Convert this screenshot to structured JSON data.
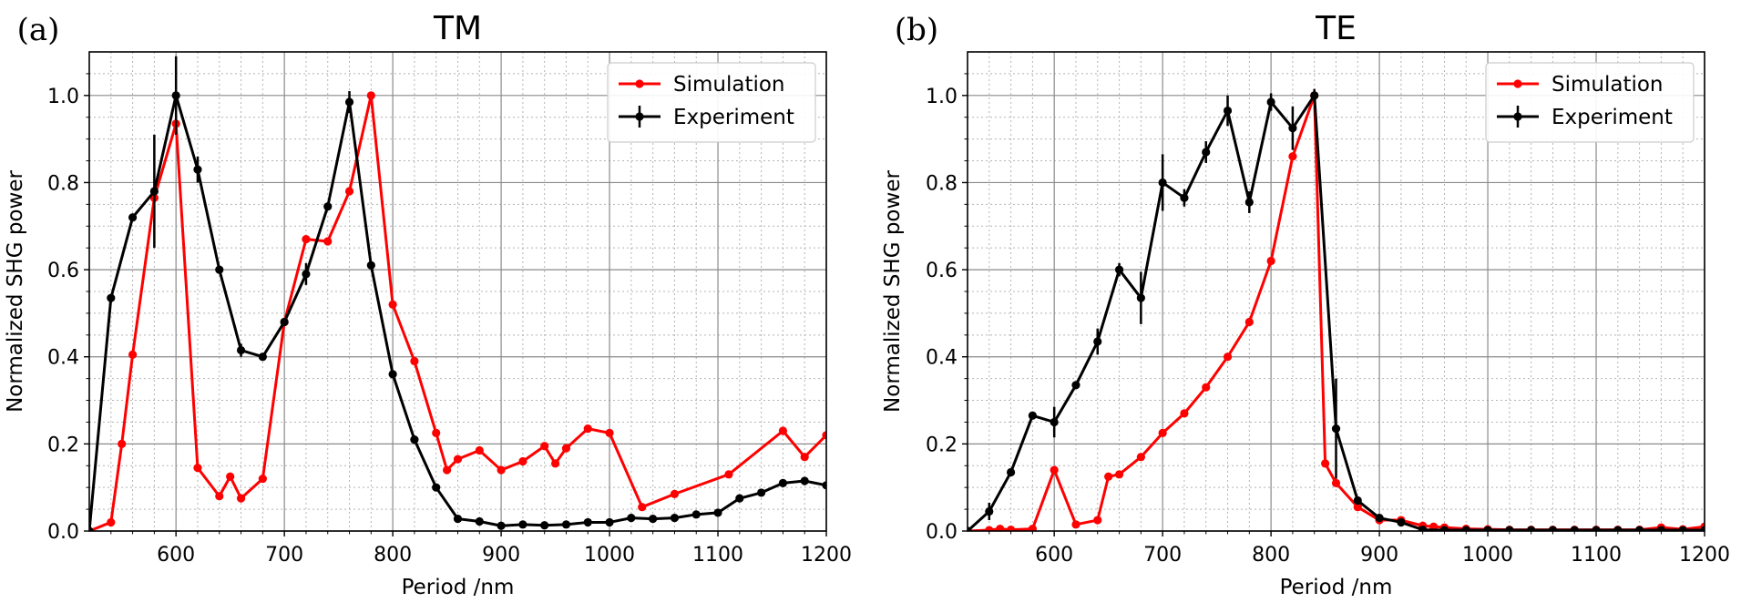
{
  "chart_data": [
    {
      "type": "line",
      "panel_label": "(a)",
      "title": "TM",
      "xlabel": "Period /nm",
      "ylabel": "Normalized SHG power",
      "xlim": [
        520,
        1200
      ],
      "ylim": [
        0,
        1.1
      ],
      "xticks": [
        "600",
        "700",
        "800",
        "900",
        "1000",
        "1100",
        "1200"
      ],
      "yticks": [
        "0.0",
        "0.2",
        "0.4",
        "0.6",
        "0.8",
        "1.0"
      ],
      "grid": true,
      "legend_position": "top-right",
      "series": [
        {
          "name": "Simulation",
          "color": "#ff0000",
          "x": [
            520,
            540,
            550,
            560,
            580,
            600,
            620,
            640,
            650,
            660,
            680,
            700,
            720,
            740,
            760,
            780,
            800,
            820,
            840,
            850,
            860,
            880,
            900,
            920,
            940,
            950,
            960,
            980,
            1000,
            1030,
            1060,
            1110,
            1160,
            1180,
            1200
          ],
          "y": [
            0.0,
            0.02,
            0.2,
            0.405,
            0.765,
            0.935,
            0.145,
            0.08,
            0.125,
            0.075,
            0.12,
            0.48,
            0.67,
            0.665,
            0.78,
            1.0,
            0.52,
            0.39,
            0.225,
            0.14,
            0.165,
            0.185,
            0.14,
            0.16,
            0.195,
            0.155,
            0.19,
            0.235,
            0.225,
            0.055,
            0.085,
            0.13,
            0.23,
            0.17,
            0.22
          ]
        },
        {
          "name": "Experiment",
          "color": "#000000",
          "x": [
            520,
            540,
            560,
            580,
            600,
            620,
            640,
            660,
            680,
            700,
            720,
            740,
            760,
            780,
            800,
            820,
            840,
            860,
            880,
            900,
            920,
            940,
            960,
            980,
            1000,
            1020,
            1040,
            1060,
            1080,
            1100,
            1120,
            1140,
            1160,
            1180,
            1200
          ],
          "y": [
            0.0,
            0.535,
            0.72,
            0.78,
            1.0,
            0.83,
            0.6,
            0.415,
            0.4,
            0.48,
            0.59,
            0.745,
            0.985,
            0.61,
            0.36,
            0.21,
            0.1,
            0.028,
            0.022,
            0.012,
            0.015,
            0.013,
            0.015,
            0.02,
            0.02,
            0.03,
            0.028,
            0.03,
            0.038,
            0.042,
            0.075,
            0.088,
            0.11,
            0.115,
            0.105
          ],
          "err": [
            0,
            0,
            0,
            0.13,
            0.09,
            0.03,
            0,
            0.015,
            0,
            0,
            0.025,
            0,
            0.025,
            0,
            0,
            0,
            0,
            0,
            0,
            0,
            0,
            0,
            0,
            0,
            0,
            0,
            0,
            0,
            0,
            0,
            0,
            0,
            0,
            0,
            0
          ]
        }
      ]
    },
    {
      "type": "line",
      "panel_label": "(b)",
      "title": "TE",
      "xlabel": "Period /nm",
      "ylabel": "Normalized SHG power",
      "xlim": [
        520,
        1200
      ],
      "ylim": [
        0,
        1.1
      ],
      "xticks": [
        "600",
        "700",
        "800",
        "900",
        "1000",
        "1100",
        "1200"
      ],
      "yticks": [
        "0.0",
        "0.2",
        "0.4",
        "0.6",
        "0.8",
        "1.0"
      ],
      "grid": true,
      "legend_position": "top-right",
      "series": [
        {
          "name": "Simulation",
          "color": "#ff0000",
          "x": [
            520,
            540,
            550,
            560,
            580,
            600,
            620,
            640,
            650,
            660,
            680,
            700,
            720,
            740,
            760,
            780,
            800,
            820,
            840,
            850,
            860,
            880,
            900,
            920,
            940,
            950,
            960,
            980,
            1000,
            1020,
            1040,
            1060,
            1080,
            1100,
            1120,
            1140,
            1160,
            1180,
            1200
          ],
          "y": [
            0.0,
            0.002,
            0.005,
            0.003,
            0.005,
            0.14,
            0.015,
            0.025,
            0.125,
            0.13,
            0.17,
            0.225,
            0.27,
            0.33,
            0.4,
            0.48,
            0.62,
            0.86,
            1.0,
            0.155,
            0.11,
            0.055,
            0.025,
            0.025,
            0.012,
            0.01,
            0.008,
            0.005,
            0.004,
            0.003,
            0.003,
            0.003,
            0.003,
            0.003,
            0.003,
            0.003,
            0.008,
            0.004,
            0.01
          ]
        },
        {
          "name": "Experiment",
          "color": "#000000",
          "x": [
            520,
            540,
            560,
            580,
            600,
            620,
            640,
            660,
            680,
            700,
            720,
            740,
            760,
            780,
            800,
            820,
            840,
            860,
            880,
            900,
            920,
            940,
            960,
            980,
            1000,
            1020,
            1040,
            1060,
            1080,
            1100,
            1120,
            1140,
            1160,
            1180,
            1200
          ],
          "y": [
            0.0,
            0.045,
            0.135,
            0.265,
            0.25,
            0.335,
            0.435,
            0.6,
            0.535,
            0.8,
            0.765,
            0.87,
            0.965,
            0.755,
            0.985,
            0.925,
            1.0,
            0.235,
            0.07,
            0.03,
            0.02,
            0.003,
            0.002,
            0.002,
            0.002,
            0.002,
            0.002,
            0.002,
            0.002,
            0.002,
            0.002,
            0.002,
            0.002,
            0.002,
            0.002
          ],
          "err": [
            0,
            0.02,
            0,
            0,
            0.035,
            0,
            0.03,
            0.015,
            0.06,
            0.065,
            0.02,
            0.025,
            0.035,
            0.025,
            0.02,
            0.05,
            0.015,
            0.115,
            0,
            0,
            0,
            0,
            0,
            0,
            0,
            0,
            0,
            0,
            0,
            0,
            0,
            0,
            0,
            0,
            0
          ]
        }
      ]
    }
  ]
}
